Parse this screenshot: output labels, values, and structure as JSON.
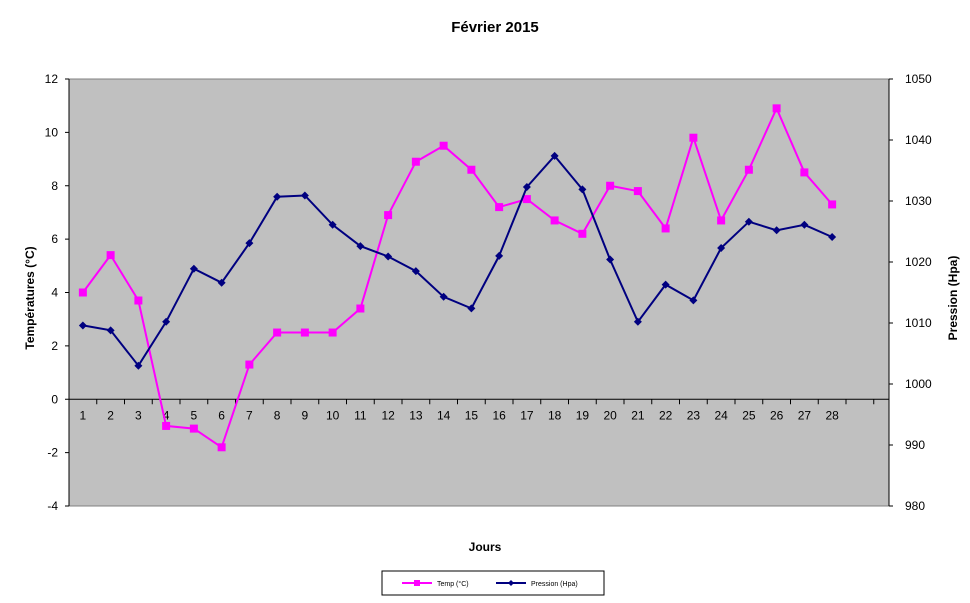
{
  "chart_data": {
    "type": "line",
    "title": "Février 2015",
    "xlabel": "Jours",
    "ylabel_left": "Températures (°C)",
    "ylabel_right": "Pression (Hpa)",
    "categories": [
      "1",
      "2",
      "3",
      "4",
      "5",
      "6",
      "7",
      "8",
      "9",
      "10",
      "11",
      "12",
      "13",
      "14",
      "15",
      "16",
      "17",
      "18",
      "19",
      "20",
      "21",
      "22",
      "23",
      "24",
      "25",
      "26",
      "27",
      "28"
    ],
    "ylim_left": [
      -4,
      12
    ],
    "yticks_left": [
      "-4",
      "-2",
      "0",
      "2",
      "4",
      "6",
      "8",
      "10",
      "12"
    ],
    "ylim_right": [
      980,
      1050
    ],
    "yticks_right": [
      "980",
      "990",
      "1000",
      "1010",
      "1020",
      "1030",
      "1040",
      "1050"
    ],
    "series": [
      {
        "name": "Temp (°C)",
        "axis": "left",
        "color": "#ff00ff",
        "marker": "square",
        "values": [
          4.0,
          5.4,
          3.7,
          -1.0,
          -1.1,
          -1.8,
          1.3,
          2.5,
          2.5,
          2.5,
          3.4,
          6.9,
          8.9,
          9.5,
          8.6,
          7.2,
          7.5,
          6.7,
          6.2,
          8.0,
          7.8,
          6.4,
          9.8,
          6.7,
          8.6,
          10.9,
          8.5,
          7.3
        ]
      },
      {
        "name": "Pression (Hpa)",
        "axis": "right",
        "color": "#000080",
        "marker": "diamond",
        "values": [
          1009.6,
          1008.8,
          1003.0,
          1010.2,
          1018.9,
          1016.6,
          1023.1,
          1030.7,
          1030.9,
          1026.1,
          1022.6,
          1020.9,
          1018.5,
          1014.3,
          1012.4,
          1021.0,
          1032.3,
          1037.4,
          1031.9,
          1020.4,
          1010.2,
          1016.3,
          1013.7,
          1022.3,
          1026.6,
          1025.2,
          1026.1,
          1024.1
        ]
      }
    ],
    "plot_background": "#c0c0c0",
    "grid": false,
    "legend_position": "bottom"
  }
}
